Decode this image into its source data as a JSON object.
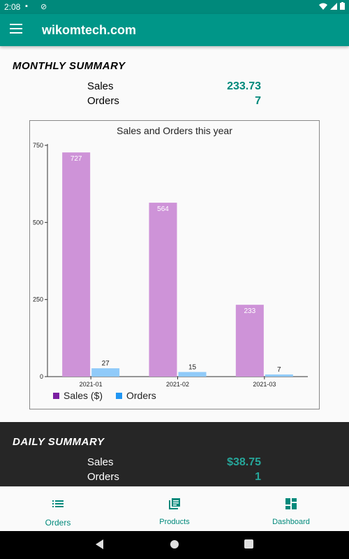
{
  "status_bar": {
    "time": "2:08"
  },
  "app_bar": {
    "title": "wikomtech.com"
  },
  "monthly": {
    "title": "MONTHLY SUMMARY",
    "sales_label": "Sales",
    "sales_value": "233.73",
    "orders_label": "Orders",
    "orders_value": "7"
  },
  "chart_data": {
    "type": "bar",
    "title": "Sales and Orders this year",
    "categories": [
      "2021-01",
      "2021-02",
      "2021-03"
    ],
    "series": [
      {
        "name": "Sales ($)",
        "values": [
          727,
          564,
          233
        ],
        "color": "#ce93d8",
        "legend_color": "#7b1fa2"
      },
      {
        "name": "Orders",
        "values": [
          27,
          15,
          7
        ],
        "color": "#90caf9",
        "legend_color": "#2196f3"
      }
    ],
    "yticks": [
      "0",
      "250",
      "500",
      "750"
    ],
    "ylim": [
      0,
      750
    ],
    "legend_position": "bottom-left"
  },
  "daily": {
    "title": "DAILY SUMMARY",
    "sales_label": "Sales",
    "sales_value": "$38.75",
    "orders_label": "Orders",
    "orders_value": "1"
  },
  "bottom_nav": {
    "items": [
      {
        "label": "Orders",
        "icon": "list-icon"
      },
      {
        "label": "Products",
        "icon": "library-icon"
      },
      {
        "label": "Dashboard",
        "icon": "dashboard-icon"
      }
    ]
  },
  "colors": {
    "primary": "#009688",
    "accent": "#00897b",
    "dark_section": "#262626"
  }
}
